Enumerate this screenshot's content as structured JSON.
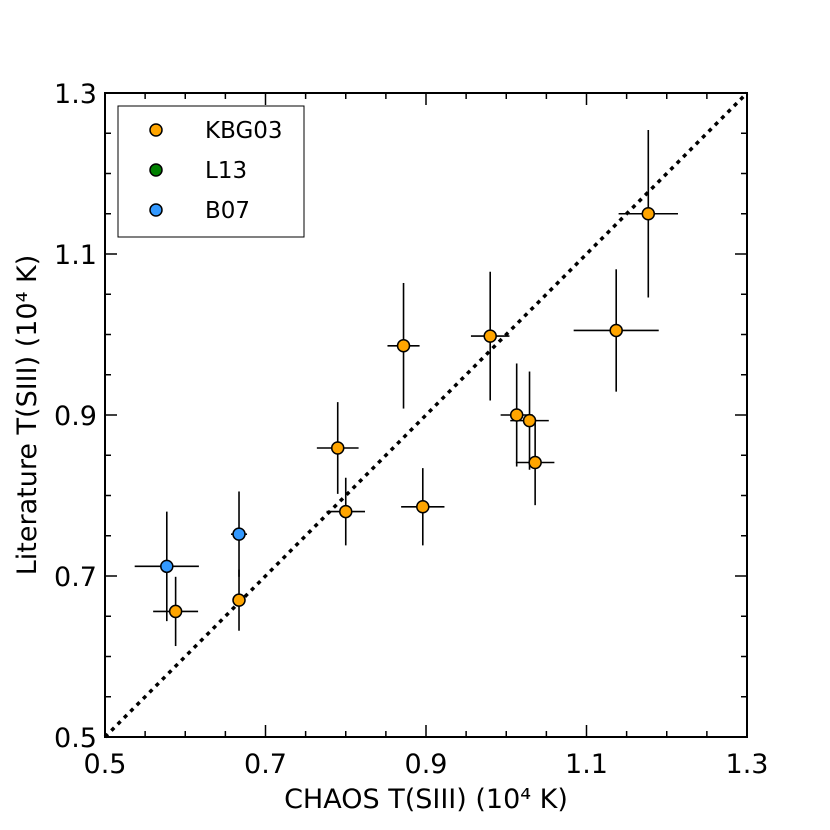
{
  "chart_data": {
    "type": "scatter",
    "xlabel": "CHAOS T(SIII) (10⁴  K)",
    "ylabel": "Literature T(SIII) (10⁴  K)",
    "xlim": [
      0.5,
      1.3
    ],
    "ylim": [
      0.5,
      1.3
    ],
    "xticks": [
      "0.5",
      "0.7",
      "0.9",
      "1.1",
      "1.3"
    ],
    "yticks": [
      "0.5",
      "0.7",
      "0.9",
      "1.1",
      "1.3"
    ],
    "reference_line": {
      "type": "y=x",
      "style": "dotted"
    },
    "legend": {
      "placement": "top-left"
    },
    "series": [
      {
        "name": "KBG03",
        "color": "#FFA500",
        "points": [
          {
            "x": 0.588,
            "y": 0.656,
            "xerr": 0.028,
            "yerr": 0.043
          },
          {
            "x": 0.667,
            "y": 0.67,
            "xerr": 0.005,
            "yerr": 0.038
          },
          {
            "x": 0.79,
            "y": 0.859,
            "xerr": 0.026,
            "yerr": 0.057
          },
          {
            "x": 0.8,
            "y": 0.78,
            "xerr": 0.024,
            "yerr": 0.042
          },
          {
            "x": 0.872,
            "y": 0.986,
            "xerr": 0.02,
            "yerr": 0.078
          },
          {
            "x": 0.896,
            "y": 0.786,
            "xerr": 0.027,
            "yerr": 0.048
          },
          {
            "x": 0.98,
            "y": 0.998,
            "xerr": 0.024,
            "yerr": 0.08
          },
          {
            "x": 1.013,
            "y": 0.9,
            "xerr": 0.02,
            "yerr": 0.064
          },
          {
            "x": 1.029,
            "y": 0.893,
            "xerr": 0.024,
            "yerr": 0.061
          },
          {
            "x": 1.036,
            "y": 0.841,
            "xerr": 0.024,
            "yerr": 0.053
          },
          {
            "x": 1.137,
            "y": 1.005,
            "xerr": 0.053,
            "yerr": 0.076
          },
          {
            "x": 1.177,
            "y": 1.15,
            "xerr": 0.037,
            "yerr": 0.104
          }
        ]
      },
      {
        "name": "L13",
        "color": "#008000",
        "points": []
      },
      {
        "name": "B07",
        "color": "#3399FF",
        "points": [
          {
            "x": 0.577,
            "y": 0.712,
            "xerr": 0.04,
            "yerr": 0.068
          },
          {
            "x": 0.667,
            "y": 0.752,
            "xerr": 0.01,
            "yerr": 0.053
          }
        ]
      }
    ]
  }
}
